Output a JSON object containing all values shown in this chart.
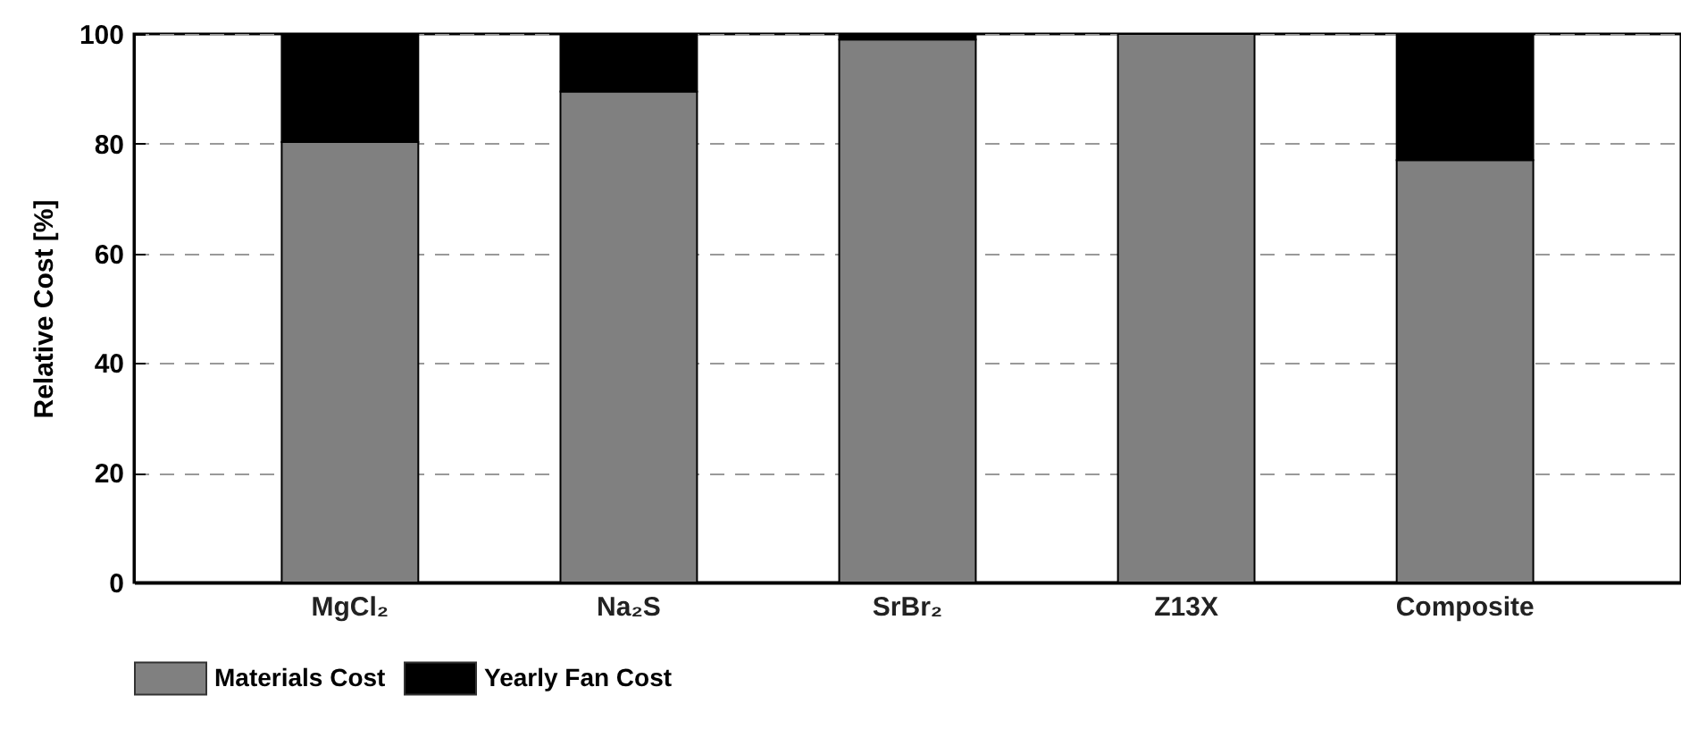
{
  "chart_data": {
    "type": "bar",
    "stacked": true,
    "ylabel": "Relative Cost [%]",
    "categories": [
      "MgCl₂",
      "Na₂S",
      "SrBr₂",
      "Z13X",
      "Composite"
    ],
    "series": [
      {
        "name": "Materials Cost",
        "color": "#808080",
        "values": [
          80.3,
          89.5,
          99,
          100,
          77
        ]
      },
      {
        "name": "Yearly Fan Cost",
        "color": "#000000",
        "values": [
          19.7,
          10.5,
          1,
          0,
          23
        ]
      }
    ],
    "ylim": [
      0,
      100
    ],
    "yticks": [
      0,
      20,
      40,
      60,
      80,
      100
    ],
    "grid": "y",
    "legend": "bottom"
  }
}
